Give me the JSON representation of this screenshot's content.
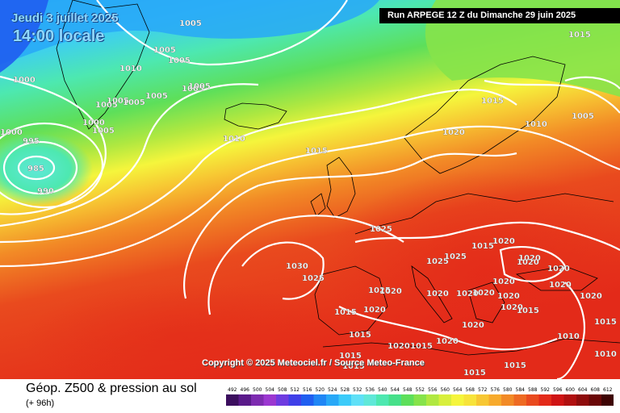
{
  "header": {
    "date_label": "Jeudi 3 juillet 2025",
    "time_label": "14:00 locale",
    "run_label": "Run ARPEGE 12 Z du Dimanche 29 juin 2025"
  },
  "copyright": "Copyright © 2025 Meteociel.fr / Source Meteo-France",
  "isobar_labels": [
    "1005",
    "1005",
    "1005",
    "1015",
    "1010",
    "1000",
    "1005",
    "1005",
    "1005",
    "1005",
    "1005",
    "1005",
    "1000",
    "1005",
    "1000",
    "995",
    "985",
    "990",
    "1010",
    "1015",
    "1015",
    "1020",
    "1010",
    "1005",
    "1025",
    "1015",
    "1020",
    "1020",
    "1030",
    "1025",
    "1020",
    "1025",
    "1025",
    "1020",
    "1025",
    "1020",
    "1015",
    "1020",
    "1020",
    "1020",
    "1020",
    "1020",
    "1020",
    "1020",
    "1020",
    "1015",
    "1020",
    "1015",
    "1020",
    "1015",
    "1020",
    "1020",
    "1015",
    "1015",
    "1015",
    "1015",
    "1010",
    "1015",
    "1010"
  ],
  "footer": {
    "product_label": "Géop. Z500 & pression au sol",
    "lead_label": "(+ 96h)"
  },
  "color_scale": {
    "ticks": [
      "492",
      "496",
      "500",
      "504",
      "508",
      "512",
      "516",
      "520",
      "524",
      "528",
      "532",
      "536",
      "540",
      "544",
      "548",
      "552",
      "556",
      "560",
      "564",
      "568",
      "572",
      "576",
      "580",
      "584",
      "588",
      "592",
      "596",
      "600",
      "604",
      "608",
      "612"
    ],
    "colors": [
      "#3b0e5e",
      "#5a1a8a",
      "#7d2bb0",
      "#9b37d0",
      "#6e3be0",
      "#3f3fe8",
      "#1f5ef0",
      "#1f86f5",
      "#28a8f7",
      "#3ccbf9",
      "#5fe0f7",
      "#5fe8d8",
      "#4de8b0",
      "#46e08a",
      "#5ddf5a",
      "#86e34a",
      "#b0e840",
      "#d8ef3c",
      "#f5f53c",
      "#f7e33a",
      "#f7c733",
      "#f7aa2c",
      "#f28a26",
      "#ee6a22",
      "#e94a1e",
      "#e32a19",
      "#cf1414",
      "#b01010",
      "#8e0c0c",
      "#6a0808",
      "#3e0404"
    ]
  },
  "colors": {
    "isobar": "#ffffff",
    "land_outline": "#000000",
    "run_box_bg": "#000000"
  }
}
